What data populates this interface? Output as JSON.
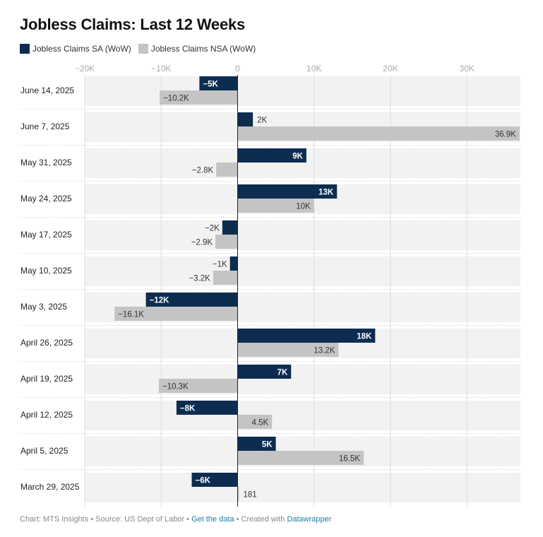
{
  "title": "Jobless Claims: Last 12 Weeks",
  "colors": {
    "sa": "#0d2d50",
    "nsa": "#c4c4c4",
    "band": "#f2f2f2",
    "link": "#1d81a2"
  },
  "legend": [
    {
      "label": "Jobless Claims SA (WoW)",
      "color": "#0d2d50"
    },
    {
      "label": "Jobless Claims NSA (WoW)",
      "color": "#c4c4c4"
    }
  ],
  "footer": {
    "credit": "Chart: MTS Insights • Source: US Dept of Labor •",
    "get_data": "Get the data",
    "created": "• Created with",
    "tool": "Datawrapper"
  },
  "chart_data": {
    "type": "bar",
    "orientation": "horizontal",
    "xlim": [
      -20000,
      37000
    ],
    "ticks": [
      -20000,
      -10000,
      0,
      10000,
      20000,
      30000
    ],
    "tick_labels": [
      "−20K",
      "−10K",
      "0",
      "10K",
      "20K",
      "30K"
    ],
    "grid": true,
    "legend_position": "top-left",
    "categories": [
      "June 14, 2025",
      "June 7, 2025",
      "May 31, 2025",
      "May 24, 2025",
      "May 17, 2025",
      "May 10, 2025",
      "May 3, 2025",
      "April 26, 2025",
      "April 19, 2025",
      "April 12, 2025",
      "April 5, 2025",
      "March 29, 2025"
    ],
    "series": [
      {
        "name": "Jobless Claims SA (WoW)",
        "values": [
          -5000,
          2000,
          9000,
          13000,
          -2000,
          -1000,
          -12000,
          18000,
          7000,
          -8000,
          5000,
          -6000
        ],
        "labels": [
          "−5K",
          "2K",
          "9K",
          "13K",
          "−2K",
          "−1K",
          "−12K",
          "18K",
          "7K",
          "−8K",
          "5K",
          "−6K"
        ]
      },
      {
        "name": "Jobless Claims NSA (WoW)",
        "values": [
          -10200,
          36900,
          -2800,
          10000,
          -2900,
          -3200,
          -16100,
          13200,
          -10300,
          4500,
          16500,
          181
        ],
        "labels": [
          "−10.2K",
          "36.9K",
          "−2.8K",
          "10K",
          "−2.9K",
          "−3.2K",
          "−16.1K",
          "13.2K",
          "−10.3K",
          "4.5K",
          "16.5K",
          "181"
        ]
      }
    ]
  }
}
